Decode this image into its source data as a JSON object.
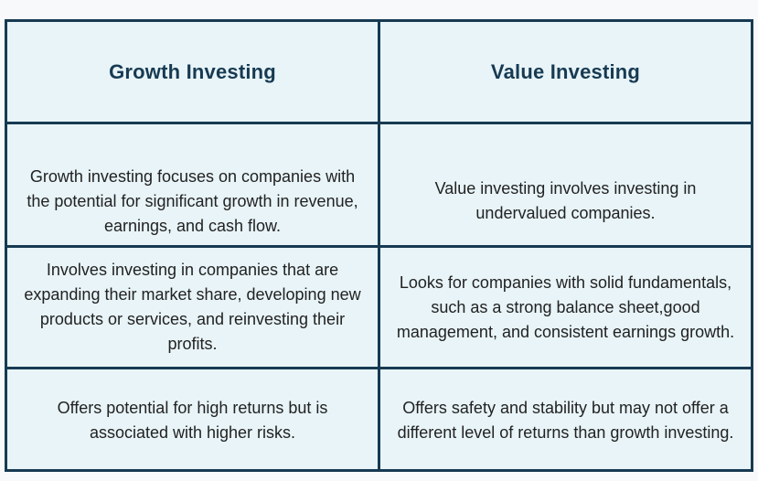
{
  "table": {
    "columns": [
      "Growth Investing",
      "Value Investing"
    ],
    "rows": [
      [
        "Growth investing focuses on companies with the potential for significant growth in revenue, earnings, and cash flow.",
        "Value investing involves investing in undervalued companies."
      ],
      [
        "Involves investing in companies that are expanding their market share, developing new products or services, and reinvesting their profits.",
        "Looks for companies with solid fundamentals, such as a strong balance sheet,good management, and consistent earnings growth."
      ],
      [
        "Offers potential for high returns but is associated with higher risks.",
        "Offers safety and stability but may not offer a different level of returns than growth investing."
      ]
    ]
  },
  "colors": {
    "border": "#173a52",
    "header_text": "#173a52",
    "cell_background": "#e8f4f8",
    "body_text": "#222222"
  }
}
